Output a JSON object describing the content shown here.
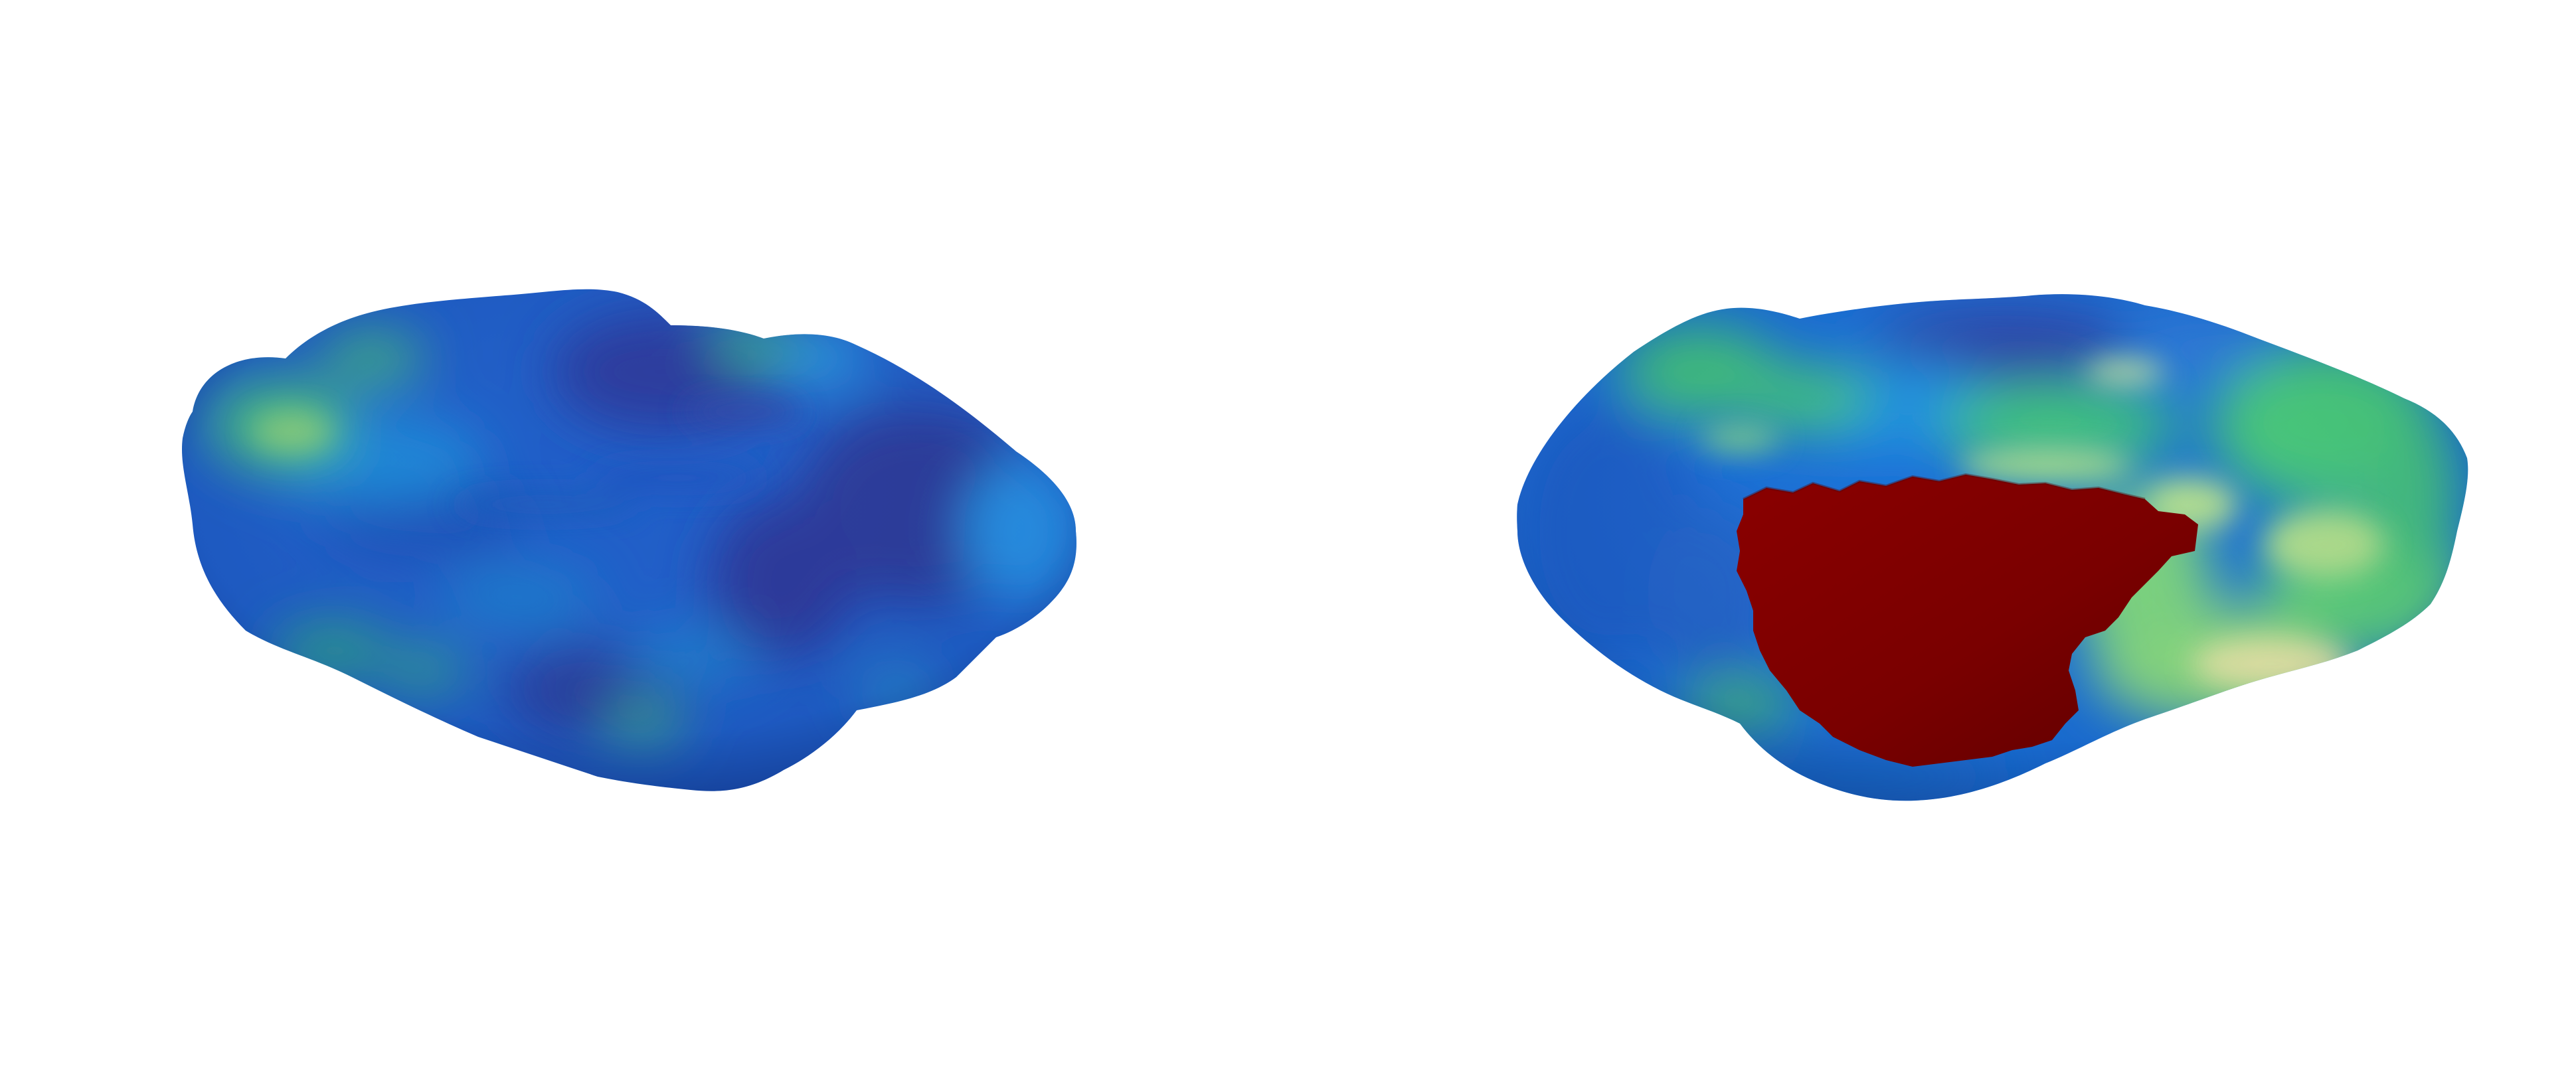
{
  "scene": {
    "background_color": "#ffffff",
    "panels": [
      {
        "view": "left",
        "surface_colors": {
          "base": "#1f5ec8",
          "deep": "#2a3a9a",
          "mid": "#1a78d8",
          "light": "#2fa0e6",
          "green": "#3cbc86",
          "yellow_green": "#9ed57a"
        }
      },
      {
        "view": "right",
        "surface_colors": {
          "base": "#1a6fd6",
          "deep": "#2e48a8",
          "mid": "#1e90e0",
          "green": "#3fc87a",
          "yellow_green": "#a8e08a",
          "pale": "#e8e3a8",
          "highlight_region": "#7e0000"
        }
      }
    ]
  }
}
